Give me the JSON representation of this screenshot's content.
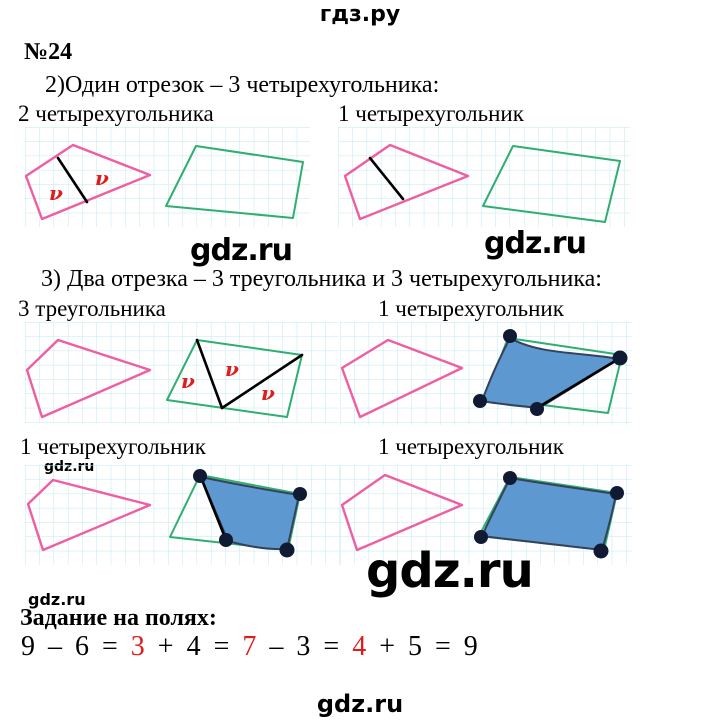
{
  "colors": {
    "text": "#000000",
    "pink": "#ef5da2",
    "green": "#2fae70",
    "grid": "#bfe9ee",
    "blue_fill": "#5d98d0",
    "blue_stroke": "#34425c",
    "dot": "#101b33",
    "red": "#df1d1d"
  },
  "header": {
    "logo": "гдз.ру"
  },
  "footer": {
    "logo": "gdz.ru"
  },
  "watermarks": {
    "row1_left": "gdz.ru",
    "row1_right": "gdz.ru",
    "row3_small": "gdz.ru",
    "bottom_small": "gdz.ru",
    "big": "gdz.ru"
  },
  "problem": {
    "number": "№24",
    "part2": {
      "heading": "2)Один отрезок – 3 четырехугольника:",
      "left_label": "2 четырехугольника",
      "right_label": "1 четырехугольник"
    },
    "part3": {
      "heading": "3) Два отрезка – 3 треугольника и 3 четырехугольника:",
      "row1_left_label": "3 треугольника",
      "row1_right_label": "1 четырехугольник",
      "row2_left_label": "1 четырехугольник",
      "row2_right_label": "1 четырехугольник"
    },
    "margin_task": {
      "heading": "Задание на полях:",
      "equation_parts": [
        {
          "t": "9 – 6 = ",
          "red": false
        },
        {
          "t": "3",
          "red": true
        },
        {
          "t": " + 4 = ",
          "red": false
        },
        {
          "t": "7",
          "red": true
        },
        {
          "t": " – 3 = ",
          "red": false
        },
        {
          "t": "4",
          "red": true
        },
        {
          "t": " + 5 = 9",
          "red": false
        }
      ]
    }
  },
  "figures": {
    "check_glyph": "ν"
  }
}
